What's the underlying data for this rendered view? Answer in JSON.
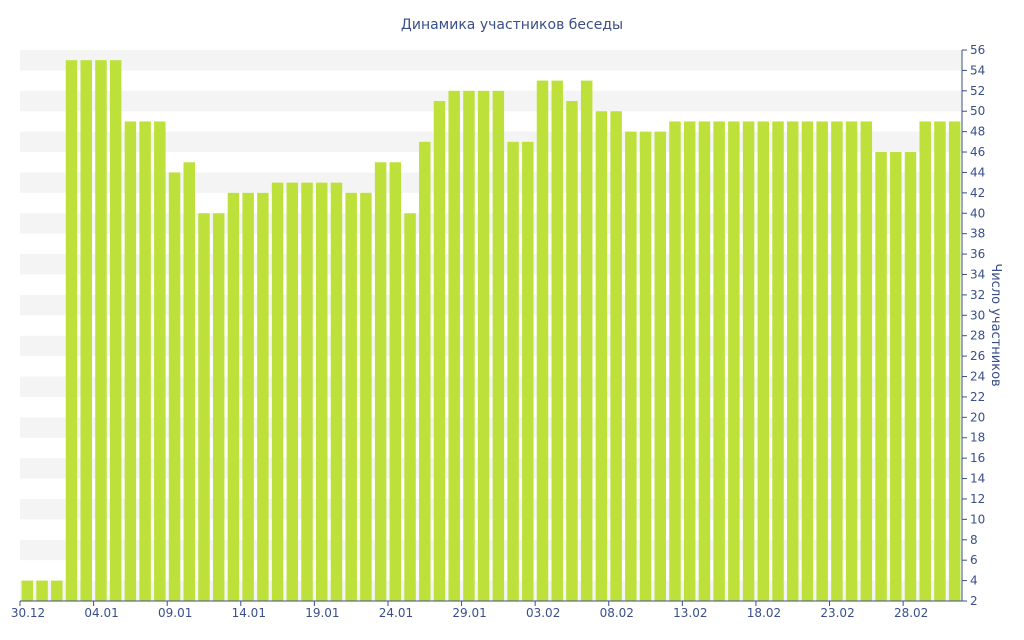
{
  "chart_data": {
    "type": "bar",
    "title": "Динамика участников беседы",
    "xlabel": "",
    "ylabel": "Число участников",
    "ylim": [
      2,
      56
    ],
    "y_ticks": [
      2,
      4,
      6,
      8,
      10,
      12,
      14,
      16,
      18,
      20,
      22,
      24,
      26,
      28,
      30,
      32,
      34,
      36,
      38,
      40,
      42,
      44,
      46,
      48,
      50,
      52,
      54,
      56
    ],
    "x_tick_labels": [
      {
        "index": 0,
        "label": "30.12"
      },
      {
        "index": 5,
        "label": "04.01"
      },
      {
        "index": 10,
        "label": "09.01"
      },
      {
        "index": 15,
        "label": "14.01"
      },
      {
        "index": 20,
        "label": "19.01"
      },
      {
        "index": 25,
        "label": "24.01"
      },
      {
        "index": 30,
        "label": "29.01"
      },
      {
        "index": 35,
        "label": "03.02"
      },
      {
        "index": 40,
        "label": "08.02"
      },
      {
        "index": 45,
        "label": "13.02"
      },
      {
        "index": 50,
        "label": "18.02"
      },
      {
        "index": 55,
        "label": "23.02"
      },
      {
        "index": 60,
        "label": "28.02"
      }
    ],
    "values": [
      4,
      4,
      4,
      55,
      55,
      55,
      55,
      49,
      49,
      49,
      44,
      45,
      40,
      40,
      42,
      42,
      42,
      43,
      43,
      43,
      43,
      43,
      42,
      42,
      45,
      45,
      40,
      47,
      51,
      52,
      52,
      52,
      52,
      47,
      47,
      53,
      53,
      51,
      53,
      50,
      50,
      48,
      48,
      48,
      49,
      49,
      49,
      49,
      49,
      49,
      49,
      49,
      49,
      49,
      49,
      49,
      49,
      49,
      46,
      46,
      46,
      49,
      49,
      49
    ],
    "bar_color": "#bde13a",
    "band_color": "#f4f4f4",
    "text_color": "#3a4f8a",
    "grid": "alternating horizontal bands",
    "y_axis_position": "right"
  }
}
